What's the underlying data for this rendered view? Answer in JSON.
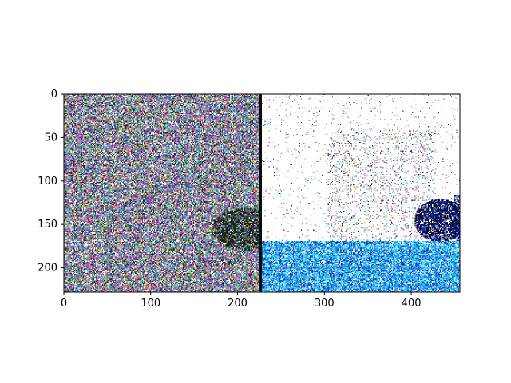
{
  "chart_data": {
    "type": "heatmap",
    "title": "",
    "xlabel": "",
    "ylabel": "",
    "image_shape": [
      228,
      456
    ],
    "xlim": [
      0,
      456
    ],
    "ylim": [
      228,
      0
    ],
    "xticks": [
      0,
      100,
      200,
      300,
      400
    ],
    "yticks": [
      0,
      50,
      100,
      150,
      200
    ],
    "panels": [
      {
        "name": "left",
        "description": "dense multicolored noise pattern with darker patch near lower right"
      },
      {
        "name": "right",
        "description": "mostly white building-like image with blue noisy lower band and dark blue patch at right"
      }
    ],
    "grid": false,
    "legend": "none"
  },
  "colors": {
    "noise_palette": [
      "#e8e8e8",
      "#2a2a2a",
      "#e040a0",
      "#40c060",
      "#4060e0",
      "#e0c040",
      "#40d0e0",
      "#a040c0",
      "#ffffff"
    ],
    "water_palette": [
      "#18d0f0",
      "#30e0ff",
      "#1a8ad8",
      "#2f50e0",
      "#0a30b0",
      "#80f0ff",
      "#ffffff"
    ],
    "dark_patch": [
      "#000000",
      "#0a1a80",
      "#1530c0",
      "#0f0f40"
    ]
  }
}
